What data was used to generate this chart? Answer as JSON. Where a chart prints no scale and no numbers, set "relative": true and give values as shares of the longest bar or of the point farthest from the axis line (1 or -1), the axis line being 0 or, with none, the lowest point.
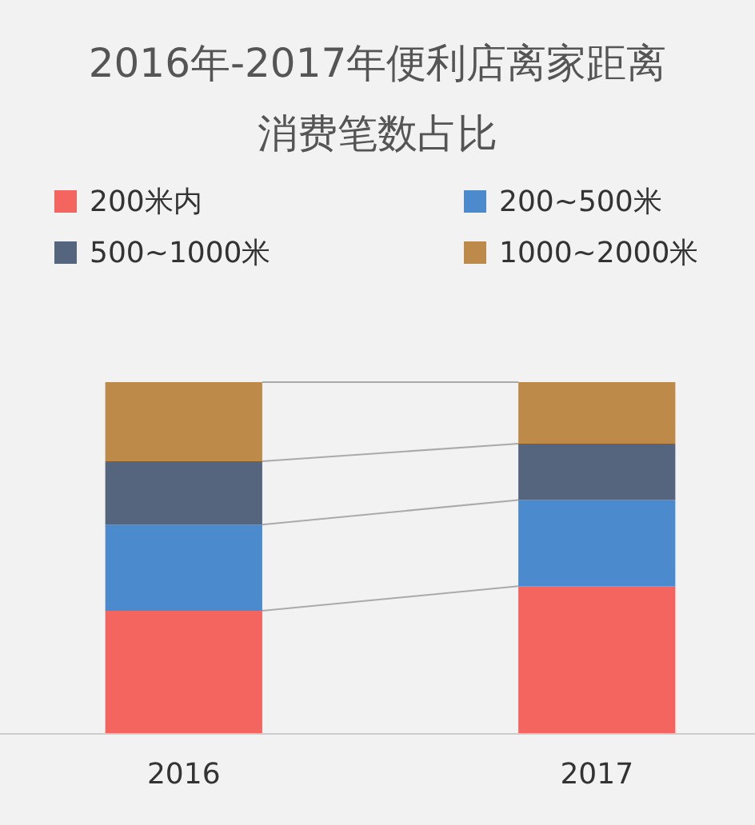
{
  "chart_data": {
    "type": "bar",
    "title": "2016年-2017年便利店离家距离",
    "subtitle": "消费笔数占比",
    "categories": [
      "2016",
      "2017"
    ],
    "stacked": true,
    "relative": true,
    "legend": "top",
    "series": [
      {
        "name": "200米内",
        "color": "#f4655f",
        "values": [
          0.35,
          0.42
        ]
      },
      {
        "name": "200~500米",
        "color": "#4a8acd",
        "values": [
          0.245,
          0.245
        ]
      },
      {
        "name": "500~1000米",
        "color": "#55657e",
        "values": [
          0.18,
          0.16
        ]
      },
      {
        "name": "1000~2000米",
        "color": "#bd8a4a",
        "values": [
          0.225,
          0.175
        ]
      }
    ]
  }
}
